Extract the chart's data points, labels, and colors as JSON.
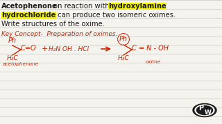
{
  "bg_color": "#f5f3ee",
  "line_color": "#c8c8c8",
  "red": "#cc2200",
  "dark": "#1a1a1a",
  "yellow_bg": "#f0f000",
  "figsize": [
    3.2,
    1.8
  ],
  "dpi": 100,
  "title1_normal1": "Acetophenone",
  "title1_normal2": " on reaction with ",
  "title1_yellow": "hydroxylamine",
  "title2_yellow": "hydrochloride",
  "title2_normal": " can produce two isomeric oximes.",
  "title3": "Write structures of the oxime.",
  "heading": "Key Concept-  Preparation of oximes.",
  "lhs_ph": "Ph",
  "lhs_co": "C=O",
  "lhs_h3c": "H₃C",
  "lhs_name": "acetophenone",
  "plus": "+",
  "reagent1": "H₂N OH . HCl",
  "rhs_ph": "Ph",
  "rhs_eq": "C = N - OH",
  "rhs_h3c": "H₃C",
  "rhs_name": "oxime"
}
